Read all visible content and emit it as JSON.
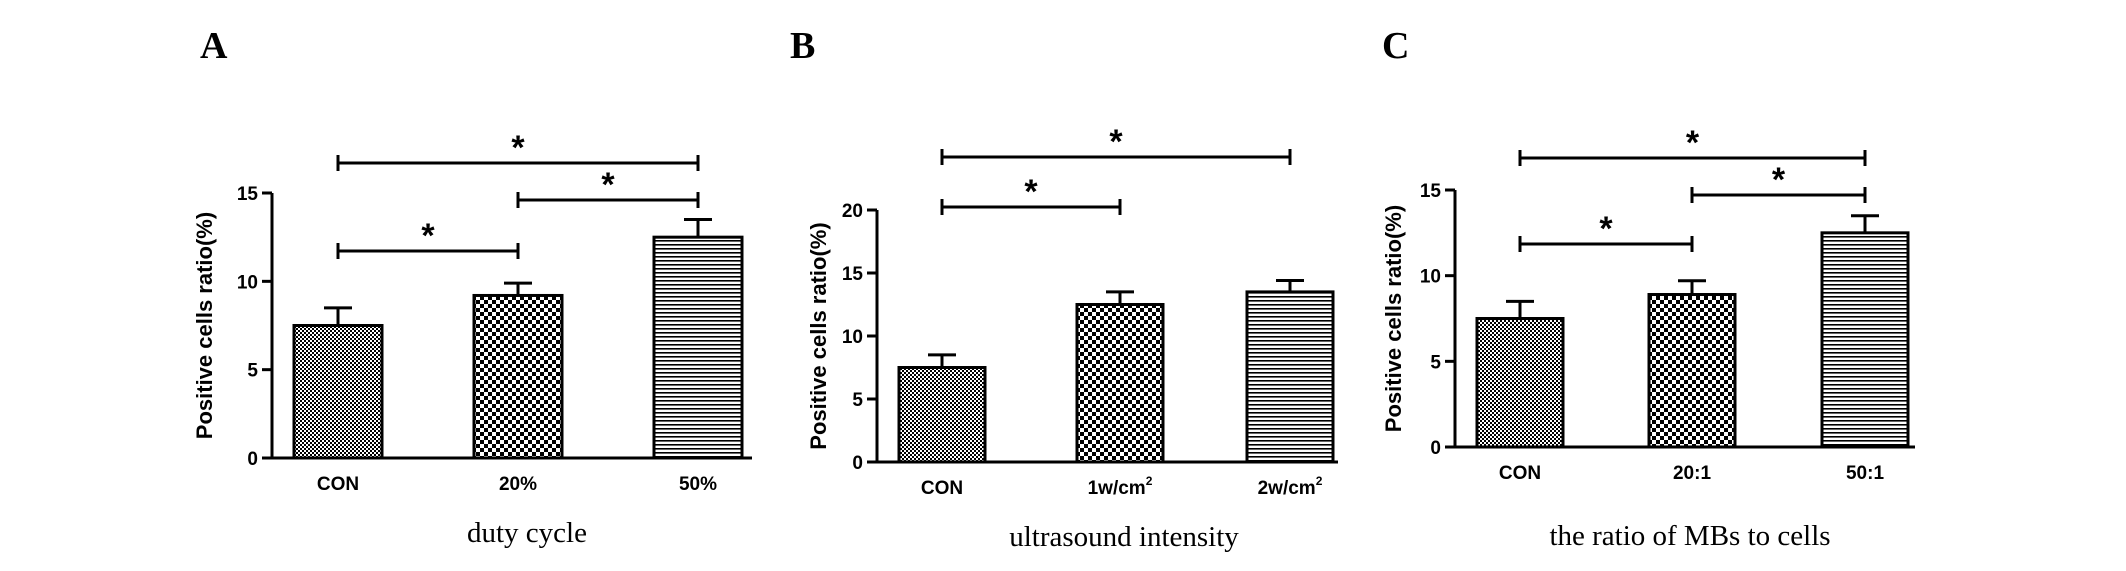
{
  "chart_data": [
    {
      "panel": "A",
      "type": "bar",
      "categories": [
        "CON",
        "20%",
        "50%"
      ],
      "values": [
        7.5,
        9.2,
        12.5
      ],
      "errors": [
        1.0,
        0.7,
        1.0
      ],
      "patterns": [
        "checker-fine",
        "checker-coarse",
        "horizontal-lines"
      ],
      "xlabel": "duty cycle",
      "ylabel": "Positive cells ratio(%)",
      "ylim": [
        0,
        15
      ],
      "yticks": [
        0,
        5,
        10,
        15
      ],
      "significance": [
        {
          "from": 1,
          "to": 2,
          "label": "*"
        },
        {
          "from": 0,
          "to": 1,
          "label": "*"
        },
        {
          "from": 0,
          "to": 2,
          "label": "*"
        }
      ]
    },
    {
      "panel": "B",
      "type": "bar",
      "categories": [
        "CON",
        "1w/cm",
        "2w/cm"
      ],
      "category_superscripts": [
        "",
        "2",
        "2"
      ],
      "values": [
        7.5,
        12.5,
        13.5
      ],
      "errors": [
        1.0,
        1.0,
        0.9
      ],
      "patterns": [
        "checker-fine",
        "checker-coarse",
        "horizontal-lines"
      ],
      "xlabel": "ultrasound intensity",
      "ylabel": "Positive cells ratio(%)",
      "ylim": [
        0,
        20
      ],
      "yticks": [
        0,
        5,
        10,
        15,
        20
      ],
      "significance": [
        {
          "from": 0,
          "to": 1,
          "label": "*"
        },
        {
          "from": 0,
          "to": 2,
          "label": "*"
        }
      ]
    },
    {
      "panel": "C",
      "type": "bar",
      "categories": [
        "CON",
        "20:1",
        "50:1"
      ],
      "values": [
        7.5,
        8.9,
        12.5
      ],
      "errors": [
        1.0,
        0.8,
        1.0
      ],
      "patterns": [
        "checker-fine",
        "checker-coarse",
        "horizontal-lines"
      ],
      "xlabel": "the ratio of MBs to cells",
      "ylabel": "Positive cells ratio(%)",
      "ylim": [
        0,
        15
      ],
      "yticks": [
        0,
        5,
        10,
        15
      ],
      "significance": [
        {
          "from": 1,
          "to": 2,
          "label": "*"
        },
        {
          "from": 0,
          "to": 1,
          "label": "*"
        },
        {
          "from": 0,
          "to": 2,
          "label": "*"
        }
      ]
    }
  ]
}
